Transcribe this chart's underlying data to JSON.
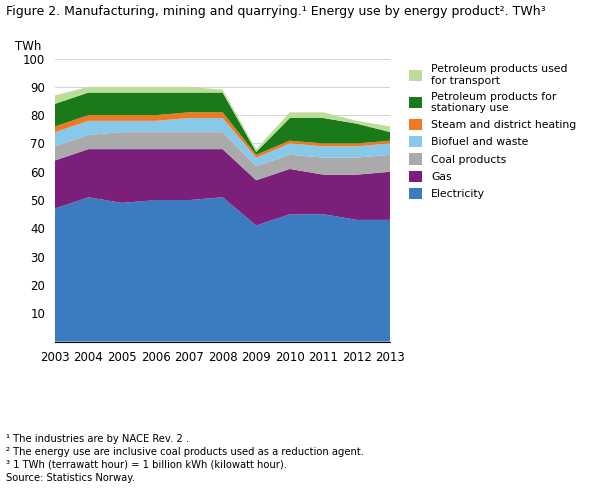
{
  "years": [
    2003,
    2004,
    2005,
    2006,
    2007,
    2008,
    2009,
    2010,
    2011,
    2012,
    2013
  ],
  "electricity": [
    47,
    51,
    49,
    50,
    50,
    51,
    41,
    45,
    45,
    43,
    43
  ],
  "gas": [
    17,
    17,
    19,
    18,
    18,
    17,
    16,
    16,
    14,
    16,
    17
  ],
  "coal": [
    5,
    5,
    6,
    6,
    6,
    6,
    5,
    5,
    6,
    6,
    6
  ],
  "biofuel": [
    5,
    5,
    4,
    4,
    5,
    5,
    3,
    4,
    4,
    4,
    4
  ],
  "steam": [
    2,
    2,
    2,
    2,
    2,
    2,
    1,
    1,
    1,
    1,
    1
  ],
  "petrol_stat": [
    8,
    8,
    8,
    8,
    7,
    7,
    1,
    8,
    9,
    7,
    3
  ],
  "petrol_trans": [
    3,
    2,
    2,
    2,
    2,
    1,
    1,
    2,
    2,
    1,
    2
  ],
  "colors": {
    "electricity": "#3B7BBF",
    "gas": "#7B1F7B",
    "coal": "#AAAAAA",
    "biofuel": "#88C8E8",
    "steam": "#F07820",
    "petrol_stat": "#1A7A1A",
    "petrol_trans": "#BBDD99"
  },
  "title": "Figure 2. Manufacturing, mining and quarrying.¹ Energy use by energy product². TWh³",
  "ylabel": "TWh",
  "ylim": [
    0,
    100
  ],
  "yticks": [
    0,
    10,
    20,
    30,
    40,
    50,
    60,
    70,
    80,
    90,
    100
  ],
  "legend_labels": [
    "Petroleum products used\nfor transport",
    "Petroleum products for\nstationary use",
    "Steam and district heating",
    "Biofuel and waste",
    "Coal products",
    "Gas",
    "Electricity"
  ],
  "legend_colors_order": [
    "petrol_trans",
    "petrol_stat",
    "steam",
    "biofuel",
    "coal",
    "gas",
    "electricity"
  ],
  "footnotes": [
    "¹ The industries are by NACE Rev. 2 .",
    "² The energy use are inclusive coal products used as a reduction agent.",
    "³ 1 TWh (terrawatt hour) = 1 billion kWh (kilowatt hour).",
    "Source: Statistics Norway."
  ]
}
